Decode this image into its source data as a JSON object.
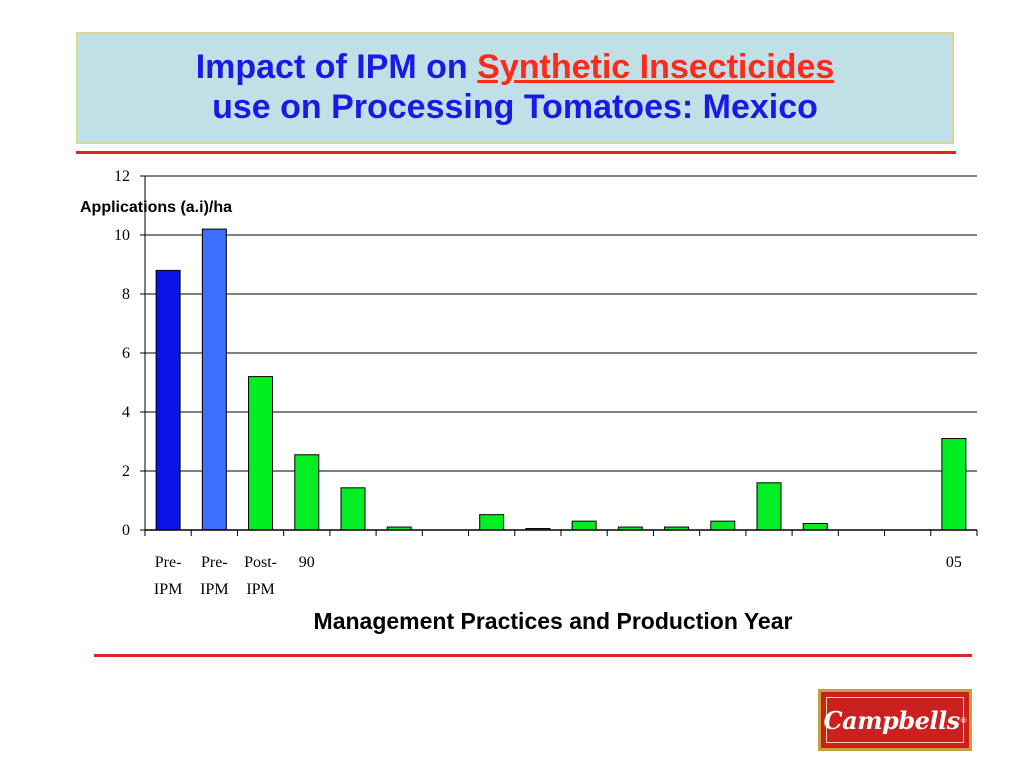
{
  "title": {
    "line1_prefix": "Impact of IPM on ",
    "line1_accent": "Synthetic Insecticides",
    "line2": "use on Processing Tomatoes: Mexico"
  },
  "colors": {
    "title_text": "#1a1ae6",
    "title_accent": "#ff2a1a",
    "title_box_bg": "#bfe0e6",
    "rule": "#e02222",
    "bar_pre_ipm_1": "#0a14e6",
    "bar_pre_ipm_2": "#3c6eff",
    "bar_post": "#00ee22"
  },
  "chart_data": {
    "type": "bar",
    "ylabel": "Applications (a.i)/ha",
    "xlabel": "Management Practices and Production Year",
    "ylim": [
      0,
      12
    ],
    "yticks": [
      0,
      2,
      4,
      6,
      8,
      10,
      12
    ],
    "grid": true,
    "categories": [
      [
        "Pre-",
        "IPM"
      ],
      [
        "Pre-",
        "IPM"
      ],
      [
        "Post-",
        "IPM"
      ],
      [
        "90"
      ],
      [
        ""
      ],
      [
        ""
      ],
      [
        ""
      ],
      [
        ""
      ],
      [
        ""
      ],
      [
        ""
      ],
      [
        ""
      ],
      [
        ""
      ],
      [
        ""
      ],
      [
        ""
      ],
      [
        ""
      ],
      [
        ""
      ],
      [
        ""
      ],
      [
        "05"
      ]
    ],
    "values": [
      8.8,
      10.2,
      5.2,
      2.55,
      1.43,
      0.1,
      0,
      0.52,
      0.05,
      0.3,
      0.1,
      0.1,
      0.3,
      1.6,
      0.22,
      0,
      0,
      3.1
    ],
    "bar_colors": [
      "#0a14e6",
      "#3c6eff",
      "#00ee22",
      "#00ee22",
      "#00ee22",
      "#00ee22",
      "#00ee22",
      "#00ee22",
      "#00ee22",
      "#00ee22",
      "#00ee22",
      "#00ee22",
      "#00ee22",
      "#00ee22",
      "#00ee22",
      "#00ee22",
      "#00ee22",
      "#00ee22"
    ]
  },
  "logo": {
    "text": "Campbells",
    "reg": "®"
  }
}
